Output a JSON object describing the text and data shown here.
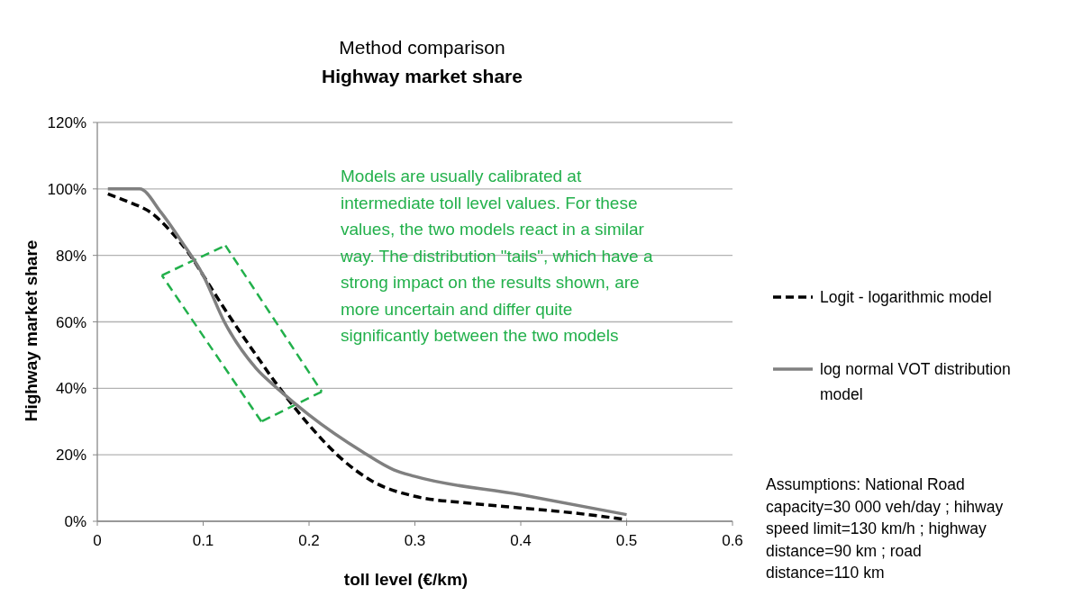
{
  "chart_data": {
    "type": "line",
    "title": "Method comparison",
    "subtitle": "Highway market share",
    "xlabel": "toll level (€/km)",
    "ylabel": "Highway market share",
    "xlim": [
      0,
      0.6
    ],
    "xticks": [
      0,
      0.1,
      0.2,
      0.3,
      0.4,
      0.5,
      0.6
    ],
    "ylim": [
      0,
      120
    ],
    "yticks": [
      {
        "value": 0,
        "label": "0%"
      },
      {
        "value": 20,
        "label": "20%"
      },
      {
        "value": 40,
        "label": "40%"
      },
      {
        "value": 60,
        "label": "60%"
      },
      {
        "value": 80,
        "label": "80%"
      },
      {
        "value": 100,
        "label": "100%"
      },
      {
        "value": 120,
        "label": "120%"
      }
    ],
    "grid": "y",
    "legend": "right",
    "marker": "none",
    "series": [
      {
        "name": "Logit - logarithmic model",
        "color": "#000000",
        "line_style": "dashed",
        "x": [
          0.01,
          0.03,
          0.05,
          0.07,
          0.09,
          0.1,
          0.12,
          0.15,
          0.17,
          0.2,
          0.23,
          0.26,
          0.3,
          0.35,
          0.4,
          0.45,
          0.5
        ],
        "values": [
          98.5,
          96,
          93,
          87,
          79,
          74,
          64,
          50,
          41,
          29,
          19,
          12,
          7.5,
          5.5,
          4,
          2.5,
          0.5
        ]
      },
      {
        "name": "log normal VOT distribution model",
        "color": "#808080",
        "line_style": "solid",
        "x": [
          0.01,
          0.04,
          0.06,
          0.08,
          0.1,
          0.12,
          0.15,
          0.17,
          0.2,
          0.25,
          0.28,
          0.3,
          0.4,
          0.5
        ],
        "values": [
          100,
          100,
          93,
          84,
          74,
          60,
          46,
          40,
          32,
          21,
          15.5,
          13.5,
          8,
          2
        ]
      }
    ],
    "annotations": [
      "Models are usually calibrated at intermediate toll level values. For these values, the two models react in a similar way. The distribution \"tails\", which have a strong impact on the results shown, are more uncertain and differ quite significantly between the two models",
      "Assumptions: National Road capacity=30 000 veh/day ; hihway speed limit=130 km/h ; highway distance=90 km ; road distance=110 km"
    ]
  }
}
